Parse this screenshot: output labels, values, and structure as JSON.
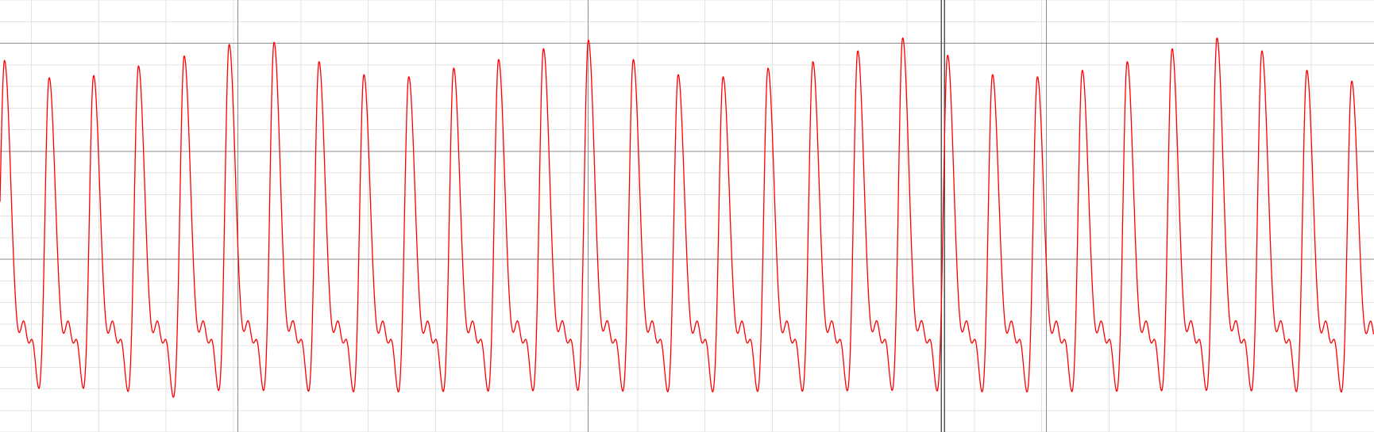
{
  "chart_data": {
    "type": "line",
    "title": "",
    "xlabel": "",
    "ylabel": "",
    "grid": true,
    "legend": "none",
    "colors": {
      "background": "#ffffff",
      "minor_grid": "#e3e3e3",
      "major_grid": "#8e8e8e",
      "cursor": "#555555",
      "trace": "#ff0000"
    },
    "xlim": [
      0,
      30.6
    ],
    "ylim": [
      -1.0,
      1.0
    ],
    "major_grid_y": [
      0.8,
      0.3,
      -0.2
    ],
    "major_grid_x": [
      5.3,
      13.1,
      23.3
    ],
    "minor_grid_x_step": 1.5,
    "minor_grid_y_step": 0.1,
    "cursor_x": 21.0,
    "series": [
      {
        "beats": [
          {
            "t": 0.1,
            "peak": 0.72
          },
          {
            "t": 1.09,
            "peak": 0.66
          },
          {
            "t": 2.08,
            "peak": 0.67
          },
          {
            "t": 3.08,
            "peak": 0.71
          },
          {
            "t": 4.1,
            "peak": 0.75
          },
          {
            "t": 5.1,
            "peak": 0.81
          },
          {
            "t": 6.1,
            "peak": 0.82
          },
          {
            "t": 7.1,
            "peak": 0.73
          },
          {
            "t": 8.1,
            "peak": 0.67
          },
          {
            "t": 9.1,
            "peak": 0.66
          },
          {
            "t": 10.1,
            "peak": 0.7
          },
          {
            "t": 11.1,
            "peak": 0.74
          },
          {
            "t": 12.1,
            "peak": 0.79
          },
          {
            "t": 13.1,
            "peak": 0.83
          },
          {
            "t": 14.1,
            "peak": 0.74
          },
          {
            "t": 15.1,
            "peak": 0.67
          },
          {
            "t": 16.1,
            "peak": 0.66
          },
          {
            "t": 17.1,
            "peak": 0.7
          },
          {
            "t": 18.1,
            "peak": 0.73
          },
          {
            "t": 19.1,
            "peak": 0.78
          },
          {
            "t": 20.1,
            "peak": 0.84
          },
          {
            "t": 21.1,
            "peak": 0.76
          },
          {
            "t": 22.1,
            "peak": 0.67
          },
          {
            "t": 23.1,
            "peak": 0.66
          },
          {
            "t": 24.1,
            "peak": 0.69
          },
          {
            "t": 25.1,
            "peak": 0.73
          },
          {
            "t": 26.1,
            "peak": 0.79
          },
          {
            "t": 27.1,
            "peak": 0.84
          },
          {
            "t": 28.1,
            "peak": 0.78
          },
          {
            "t": 29.1,
            "peak": 0.69
          },
          {
            "t": 30.1,
            "peak": 0.64
          }
        ],
        "trough": -0.92,
        "baseline": -0.7
      }
    ]
  }
}
